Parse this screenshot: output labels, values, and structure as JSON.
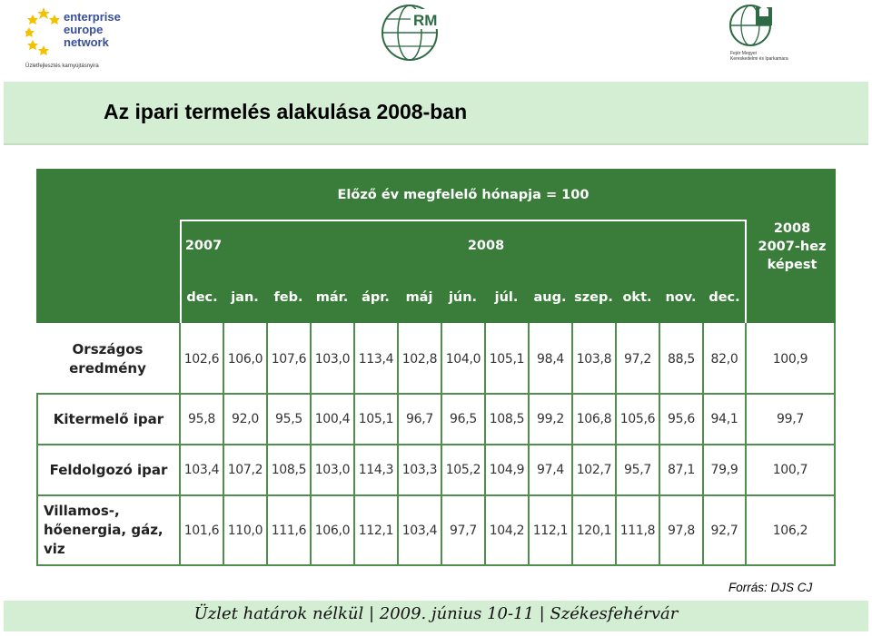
{
  "header": {
    "een_logo_lines": [
      "enterprise",
      "europe",
      "network"
    ],
    "een_logo_sub": "Üzletfejlesztés karnyújtásnyira",
    "rm_logo": "RM",
    "fm_logo_lines": [
      "Fejér Megyei",
      "Kereskedelmi és Iparkamara"
    ]
  },
  "title": "Az ipari termelés alakulása 2008-ban",
  "table": {
    "main_header": "Előző év megfelelő hónapja = 100",
    "year_2007": "2007",
    "year_2008": "2008",
    "last_col_header": [
      "2008",
      "2007-hez",
      "képest"
    ],
    "months": [
      "dec.",
      "jan.",
      "feb.",
      "már.",
      "ápr.",
      "máj",
      "jún.",
      "júl.",
      "aug.",
      "szep.",
      "okt.",
      "nov.",
      "dec."
    ],
    "rows": [
      {
        "label": [
          "Országos",
          "eredmény"
        ],
        "values": [
          "102,6",
          "106,0",
          "107,6",
          "103,0",
          "113,4",
          "102,8",
          "104,0",
          "105,1",
          "98,4",
          "103,8",
          "97,2",
          "88,5",
          "82,0"
        ],
        "total": "100,9"
      },
      {
        "label": [
          "Kitermelő ipar"
        ],
        "values": [
          "95,8",
          "92,0",
          "95,5",
          "100,4",
          "105,1",
          "96,7",
          "96,5",
          "108,5",
          "99,2",
          "106,8",
          "105,6",
          "95,6",
          "94,1"
        ],
        "total": "99,7"
      },
      {
        "label": [
          "Feldolgozó ipar"
        ],
        "values": [
          "103,4",
          "107,2",
          "108,5",
          "103,0",
          "114,3",
          "103,3",
          "105,2",
          "104,9",
          "97,4",
          "102,7",
          "95,7",
          "87,1",
          "79,9"
        ],
        "total": "100,7"
      },
      {
        "label": [
          "Villamos-,",
          "hőenergia, gáz,",
          "viz"
        ],
        "values": [
          "101,6",
          "110,0",
          "111,6",
          "106,0",
          "112,1",
          "103,4",
          "97,7",
          "104,2",
          "112,1",
          "120,1",
          "111,8",
          "97,8",
          "92,7"
        ],
        "total": "106,2"
      }
    ]
  },
  "source": "Forrás: DJS CJ",
  "footer": "Üzlet határok nélkül | 2009. június 10-11 | Székesfehérvár",
  "colors": {
    "table_header_green": "#3a7d3a",
    "band_green": "#d4eed4",
    "logo_blue": "#3a4f9a",
    "logo_star_yellow": "#f2c200"
  }
}
